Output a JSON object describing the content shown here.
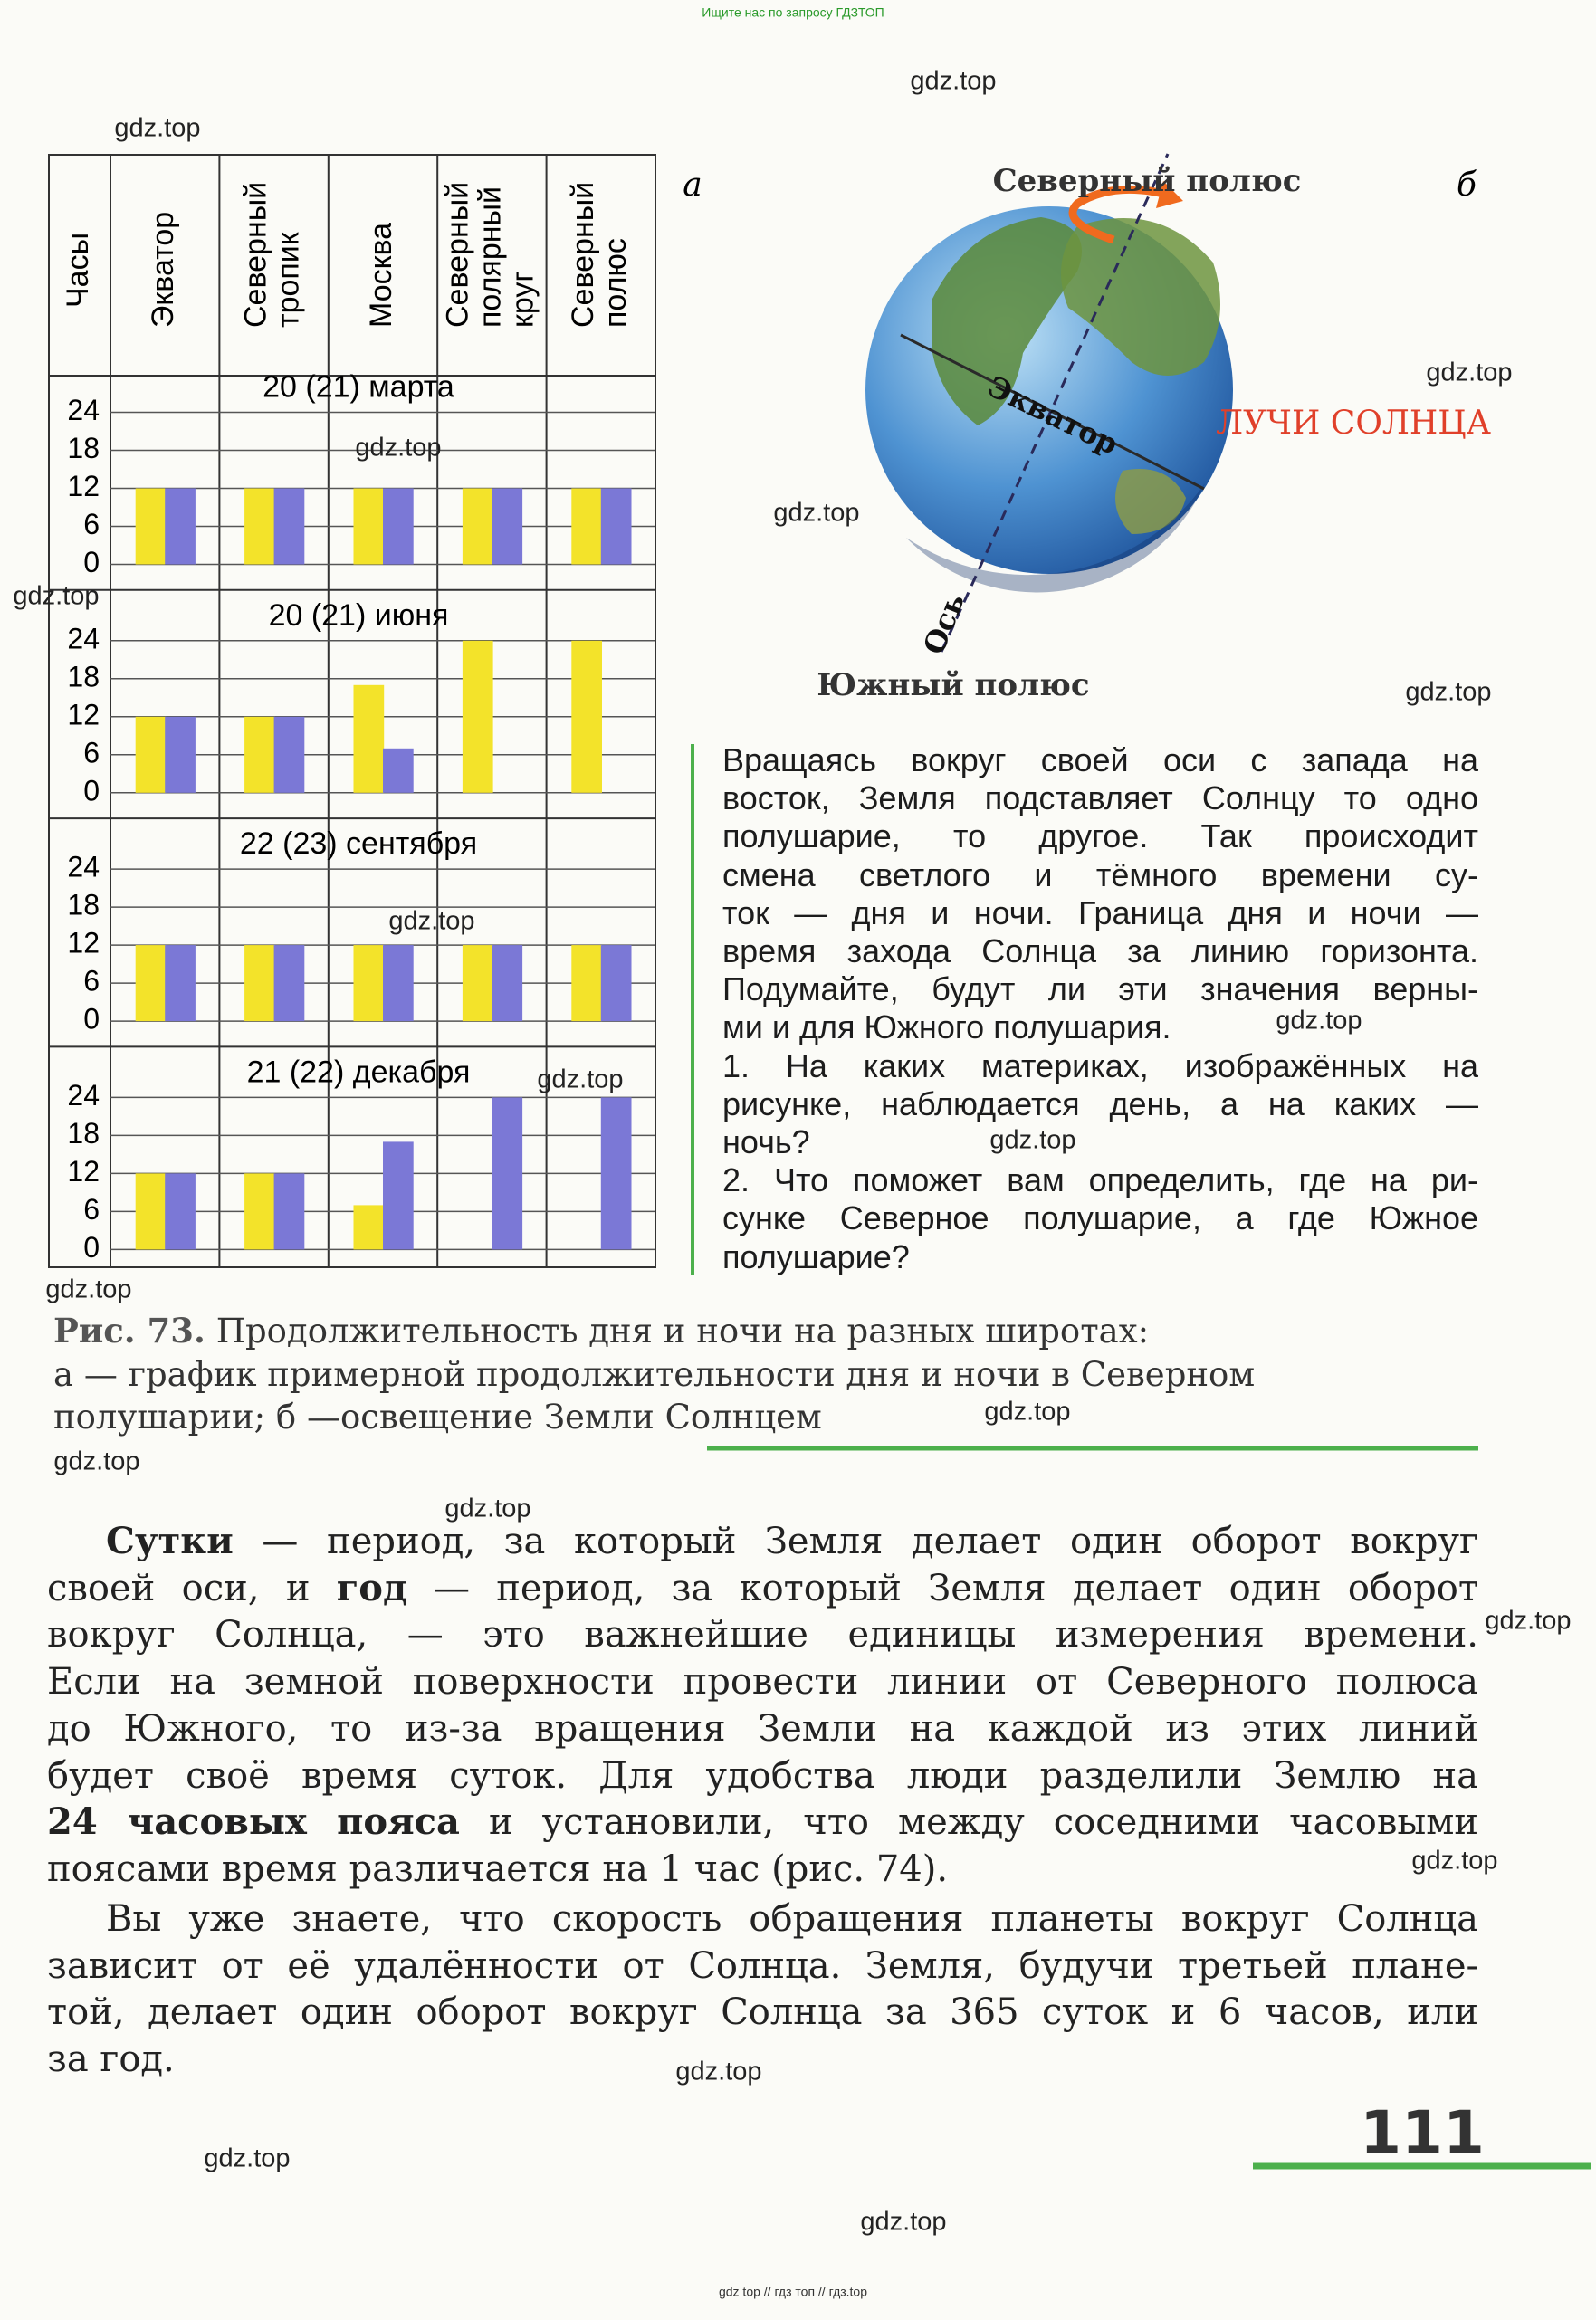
{
  "watermark_top": "Ищите нас по запросу ГДЗТОП",
  "watermarks": [
    "gdz.top",
    "gdz.top",
    "gdz.top",
    "gdz.top",
    "gdz.top",
    "gdz.top",
    "gdz.top",
    "gdz.top",
    "gdz.top",
    "gdz.top",
    "gdz.top",
    "gdz.top",
    "gdz.top",
    "gdz.top",
    "gdz.top",
    "gdz.top",
    "gdz.top",
    "gdz.top",
    "gdz.top",
    "gdz.top"
  ],
  "watermark_bottom": "gdz top // гдз топ // гдз.top",
  "chart_data": {
    "type": "bar",
    "panel_label": "а",
    "y_label": "Часы",
    "categories": [
      "Экватор",
      "Северный тропик",
      "Москва",
      "Северный полярный круг",
      "Северный полюс"
    ],
    "ylim": [
      0,
      24
    ],
    "yticks": [
      0,
      6,
      12,
      18,
      24
    ],
    "grid": true,
    "panels": [
      {
        "title": "20 (21) марта",
        "series": [
          {
            "color": "#f3e32a",
            "values": [
              12,
              12,
              12,
              12,
              12
            ]
          },
          {
            "color": "#7b78d6",
            "values": [
              12,
              12,
              12,
              12,
              12
            ]
          }
        ]
      },
      {
        "title": "20 (21) июня",
        "series": [
          {
            "color": "#f3e32a",
            "values": [
              12,
              12,
              17,
              24,
              24
            ]
          },
          {
            "color": "#7b78d6",
            "values": [
              12,
              12,
              7,
              0,
              0
            ]
          }
        ]
      },
      {
        "title": "22 (23) сентября",
        "series": [
          {
            "color": "#f3e32a",
            "values": [
              12,
              12,
              12,
              12,
              12
            ]
          },
          {
            "color": "#7b78d6",
            "values": [
              12,
              12,
              12,
              12,
              12
            ]
          }
        ]
      },
      {
        "title": "21 (22) декабря",
        "series": [
          {
            "color": "#f3e32a",
            "values": [
              12,
              12,
              7,
              0,
              0
            ]
          },
          {
            "color": "#7b78d6",
            "values": [
              12,
              12,
              17,
              24,
              24
            ]
          }
        ]
      }
    ]
  },
  "globe": {
    "panel_label": "б",
    "north": "Северный полюс",
    "equator": "Экватор",
    "rays": "ЛУЧИ СОЛНЦА",
    "axis": "Ось",
    "south": "Южный полюс"
  },
  "side_text": {
    "paragraphs": [
      [
        "Вращаясь вокруг своей оси с запада на",
        "восток, Земля подставляет Солнцу то одно",
        "полушарие, то другое. Так происходит",
        "смена светлого и тёмного времени су-",
        "ток — дня и ночи. Граница дня и ночи —",
        "время захода Солнца за линию горизонта.",
        "Подумайте, будут ли эти значения верны-",
        "ми и для Южного полушария."
      ],
      [
        "1. На каких материках, изображённых на",
        "рисунке, наблюдается день, а на каких —",
        "ночь?"
      ],
      [
        "2. Что поможет вам определить, где на ри-",
        "сунке Северное полушарие, а где Южное",
        "полушарие?"
      ]
    ]
  },
  "caption": {
    "label": "Рис. 73.",
    "lines": [
      "Продолжительность дня и ночи на разных широтах:",
      "а — график примерной продолжительности дня и ночи в Северном",
      "полушарии; б —освещение Земли Солнцем"
    ]
  },
  "body": {
    "paragraphs": [
      [
        [
          {
            "text": "Сутки",
            "bold": true
          },
          " — период, за который Земля делает один оборот вокруг"
        ],
        [
          "своей оси, и ",
          {
            "text": "год",
            "bold": true
          },
          " — период, за который Земля делает один оборот"
        ],
        [
          "вокруг Солнца, — это важнейшие единицы измерения времени."
        ],
        [
          "Если на земной поверхности провести линии от Северного полюса"
        ],
        [
          "до Южного, то из-за вращения Земли на каждой из этих линий"
        ],
        [
          "будет своё время суток. Для удобства люди разделили Землю на"
        ],
        [
          {
            "text": "24 часовых пояса",
            "bold": true
          },
          " и установили, что между соседними часовыми"
        ],
        [
          "поясами время различается на 1 час (рис. 74)."
        ]
      ],
      [
        [
          "Вы уже знаете, что скорость обращения планеты вокруг Солнца"
        ],
        [
          "зависит от её удалённости от Солнца. Земля, будучи третьей плане-"
        ],
        [
          "той, делает один оборот вокруг Солнца за 365 суток и 6 часов, или"
        ],
        [
          "за год."
        ]
      ]
    ]
  },
  "page_number": "111"
}
